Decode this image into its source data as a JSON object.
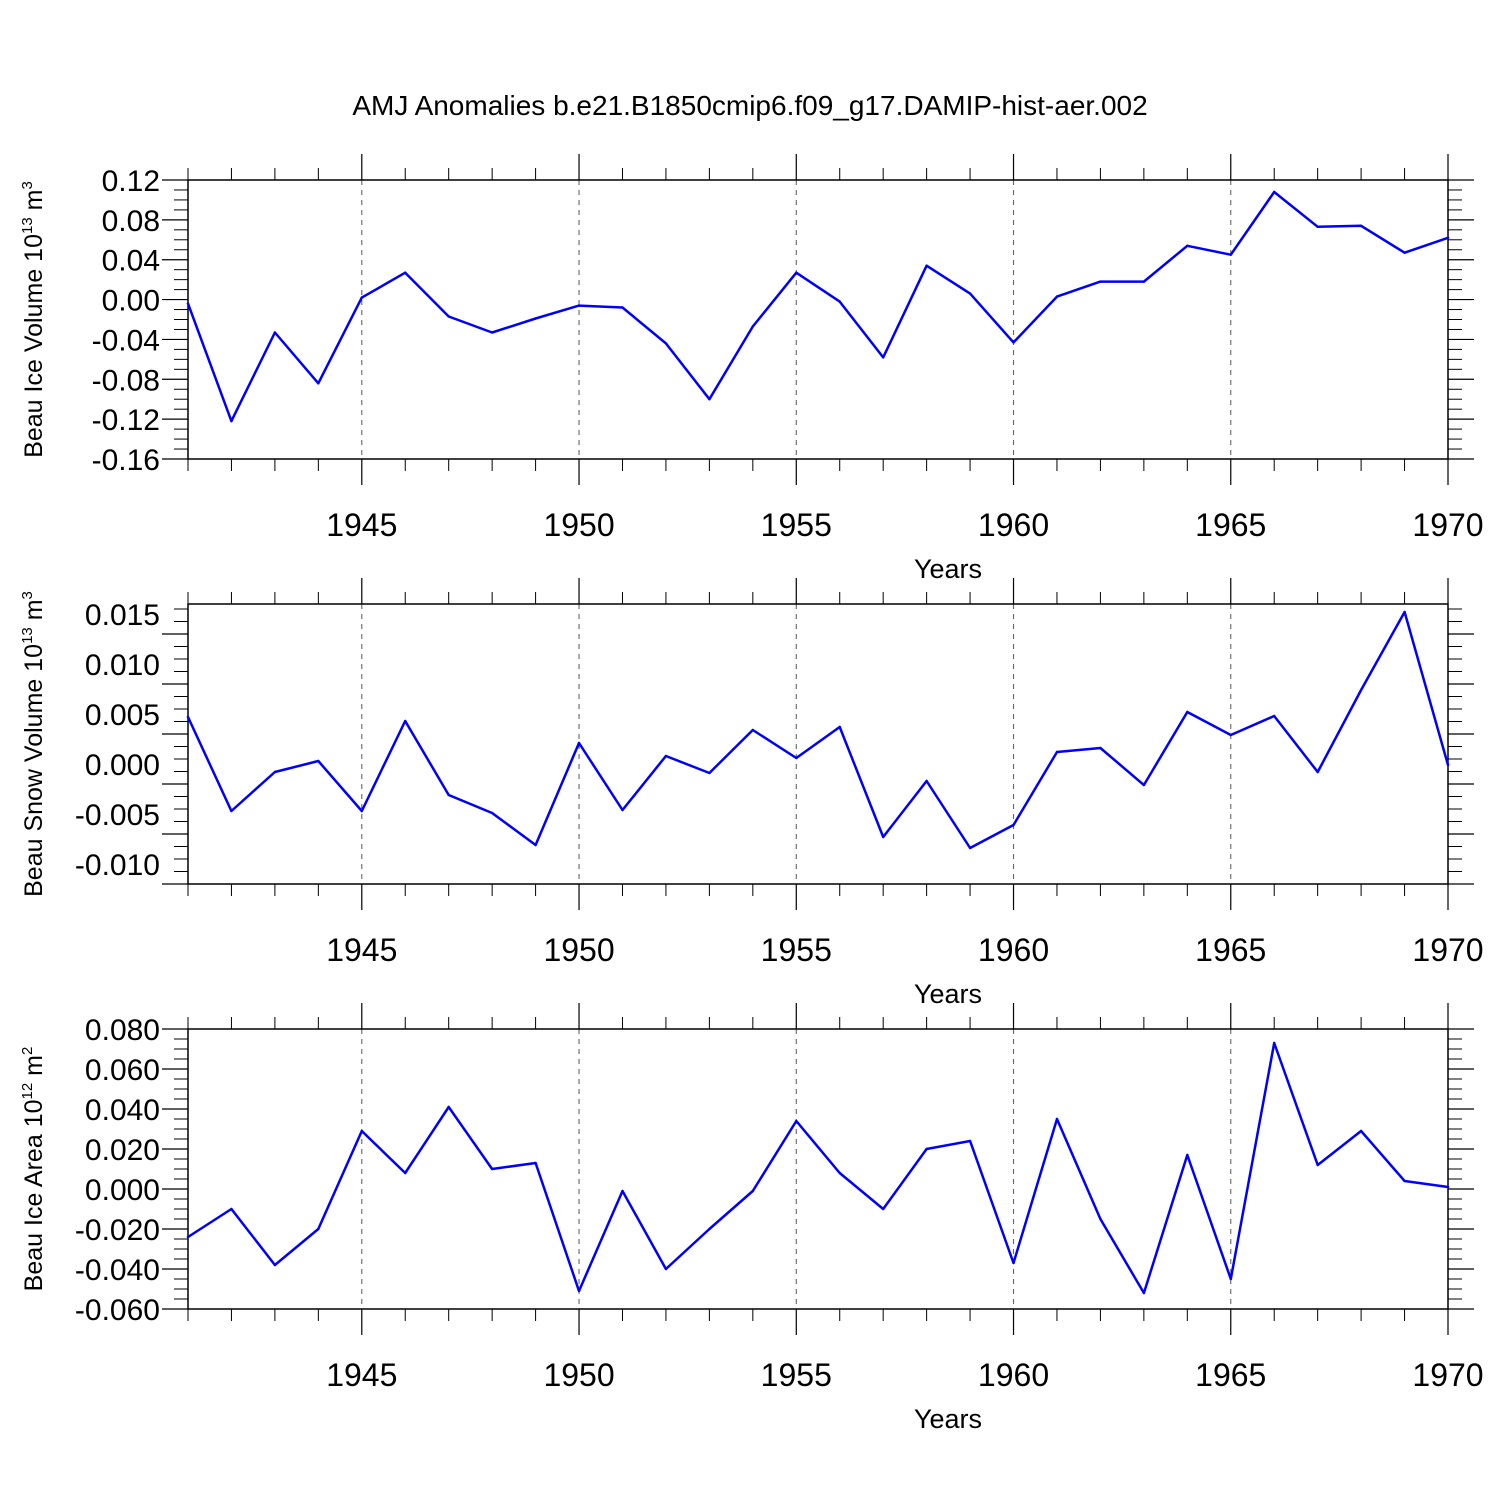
{
  "title": "AMJ Anomalies b.e21.B1850cmip6.f09_g17.DAMIP-hist-aer.002",
  "colors": {
    "line": "#0000ff",
    "grid": "#666666",
    "axis": "#000000"
  },
  "chart_data": [
    {
      "type": "line",
      "ylabel": {
        "text": "Beau Ice Volume 10",
        "sup": "13",
        "unit": " m",
        "unit_sup": "3"
      },
      "xlabel": "Years",
      "xlim": [
        1941,
        1970
      ],
      "ylim": [
        -0.16,
        0.12
      ],
      "xticks": [
        1945,
        1950,
        1955,
        1960,
        1965,
        1970
      ],
      "yticks": [
        "0.12",
        "0.08",
        "0.04",
        "0.00",
        "-0.04",
        "-0.08",
        "-0.12",
        "-0.16"
      ],
      "grid_x": [
        1945,
        1950,
        1955,
        1960,
        1965
      ],
      "x": [
        1941,
        1942,
        1943,
        1944,
        1945,
        1946,
        1947,
        1948,
        1949,
        1950,
        1951,
        1952,
        1953,
        1954,
        1955,
        1956,
        1957,
        1958,
        1959,
        1960,
        1961,
        1962,
        1963,
        1964,
        1965,
        1966,
        1967,
        1968,
        1969,
        1970
      ],
      "values": [
        -0.004,
        -0.122,
        -0.033,
        -0.084,
        0.002,
        0.027,
        -0.017,
        -0.033,
        -0.019,
        -0.006,
        -0.008,
        -0.044,
        -0.1,
        -0.027,
        0.027,
        -0.002,
        -0.058,
        0.034,
        0.006,
        -0.043,
        0.003,
        0.018,
        0.018,
        0.054,
        0.045,
        0.108,
        0.073,
        0.074,
        0.047,
        0.062
      ]
    },
    {
      "type": "line",
      "ylabel": {
        "text": "Beau Snow Volume 10",
        "sup": "13",
        "unit": " m",
        "unit_sup": "3"
      },
      "xlabel": "Years",
      "xlim": [
        1941,
        1970
      ],
      "ylim": [
        -0.012,
        0.016
      ],
      "xticks": [
        1945,
        1950,
        1955,
        1960,
        1965,
        1970
      ],
      "yticks": [
        "0.015",
        "0.010",
        "0.005",
        "0.000",
        "-0.005",
        "-0.010"
      ],
      "grid_x": [
        1945,
        1950,
        1955,
        1960,
        1965
      ],
      "x": [
        1941,
        1942,
        1943,
        1944,
        1945,
        1946,
        1947,
        1948,
        1949,
        1950,
        1951,
        1952,
        1953,
        1954,
        1955,
        1956,
        1957,
        1958,
        1959,
        1960,
        1961,
        1962,
        1963,
        1964,
        1965,
        1966,
        1967,
        1968,
        1969,
        1970
      ],
      "values": [
        0.0047,
        -0.0047,
        -0.0008,
        0.0003,
        -0.0047,
        0.0043,
        -0.0031,
        -0.0049,
        -0.0081,
        0.0021,
        -0.0046,
        0.0008,
        -0.0009,
        0.0034,
        0.0006,
        0.0037,
        -0.0073,
        -0.0017,
        -0.0084,
        -0.0061,
        0.0012,
        0.0016,
        -0.0021,
        0.0052,
        0.0029,
        0.0048,
        -0.0008,
        0.0074,
        0.0152,
        -0.0001
      ]
    },
    {
      "type": "line",
      "ylabel": {
        "text": "Beau Ice Area 10",
        "sup": "12",
        "unit": " m",
        "unit_sup": "2"
      },
      "xlabel": "Years",
      "xlim": [
        1941,
        1970
      ],
      "ylim": [
        -0.06,
        0.08
      ],
      "xticks": [
        1945,
        1950,
        1955,
        1960,
        1965,
        1970
      ],
      "yticks": [
        "0.080",
        "0.060",
        "0.040",
        "0.020",
        "0.000",
        "-0.020",
        "-0.040",
        "-0.060"
      ],
      "grid_x": [
        1945,
        1950,
        1955,
        1960,
        1965
      ],
      "x": [
        1941,
        1942,
        1943,
        1944,
        1945,
        1946,
        1947,
        1948,
        1949,
        1950,
        1951,
        1952,
        1953,
        1954,
        1955,
        1956,
        1957,
        1958,
        1959,
        1960,
        1961,
        1962,
        1963,
        1964,
        1965,
        1966,
        1967,
        1968,
        1969,
        1970
      ],
      "values": [
        -0.024,
        -0.01,
        -0.038,
        -0.02,
        0.029,
        0.008,
        0.041,
        0.01,
        0.013,
        -0.051,
        -0.001,
        -0.04,
        -0.02,
        -0.001,
        0.034,
        0.008,
        -0.01,
        0.02,
        0.024,
        -0.037,
        0.035,
        -0.015,
        -0.052,
        0.017,
        -0.045,
        0.073,
        0.012,
        0.029,
        0.004,
        0.001
      ]
    }
  ]
}
